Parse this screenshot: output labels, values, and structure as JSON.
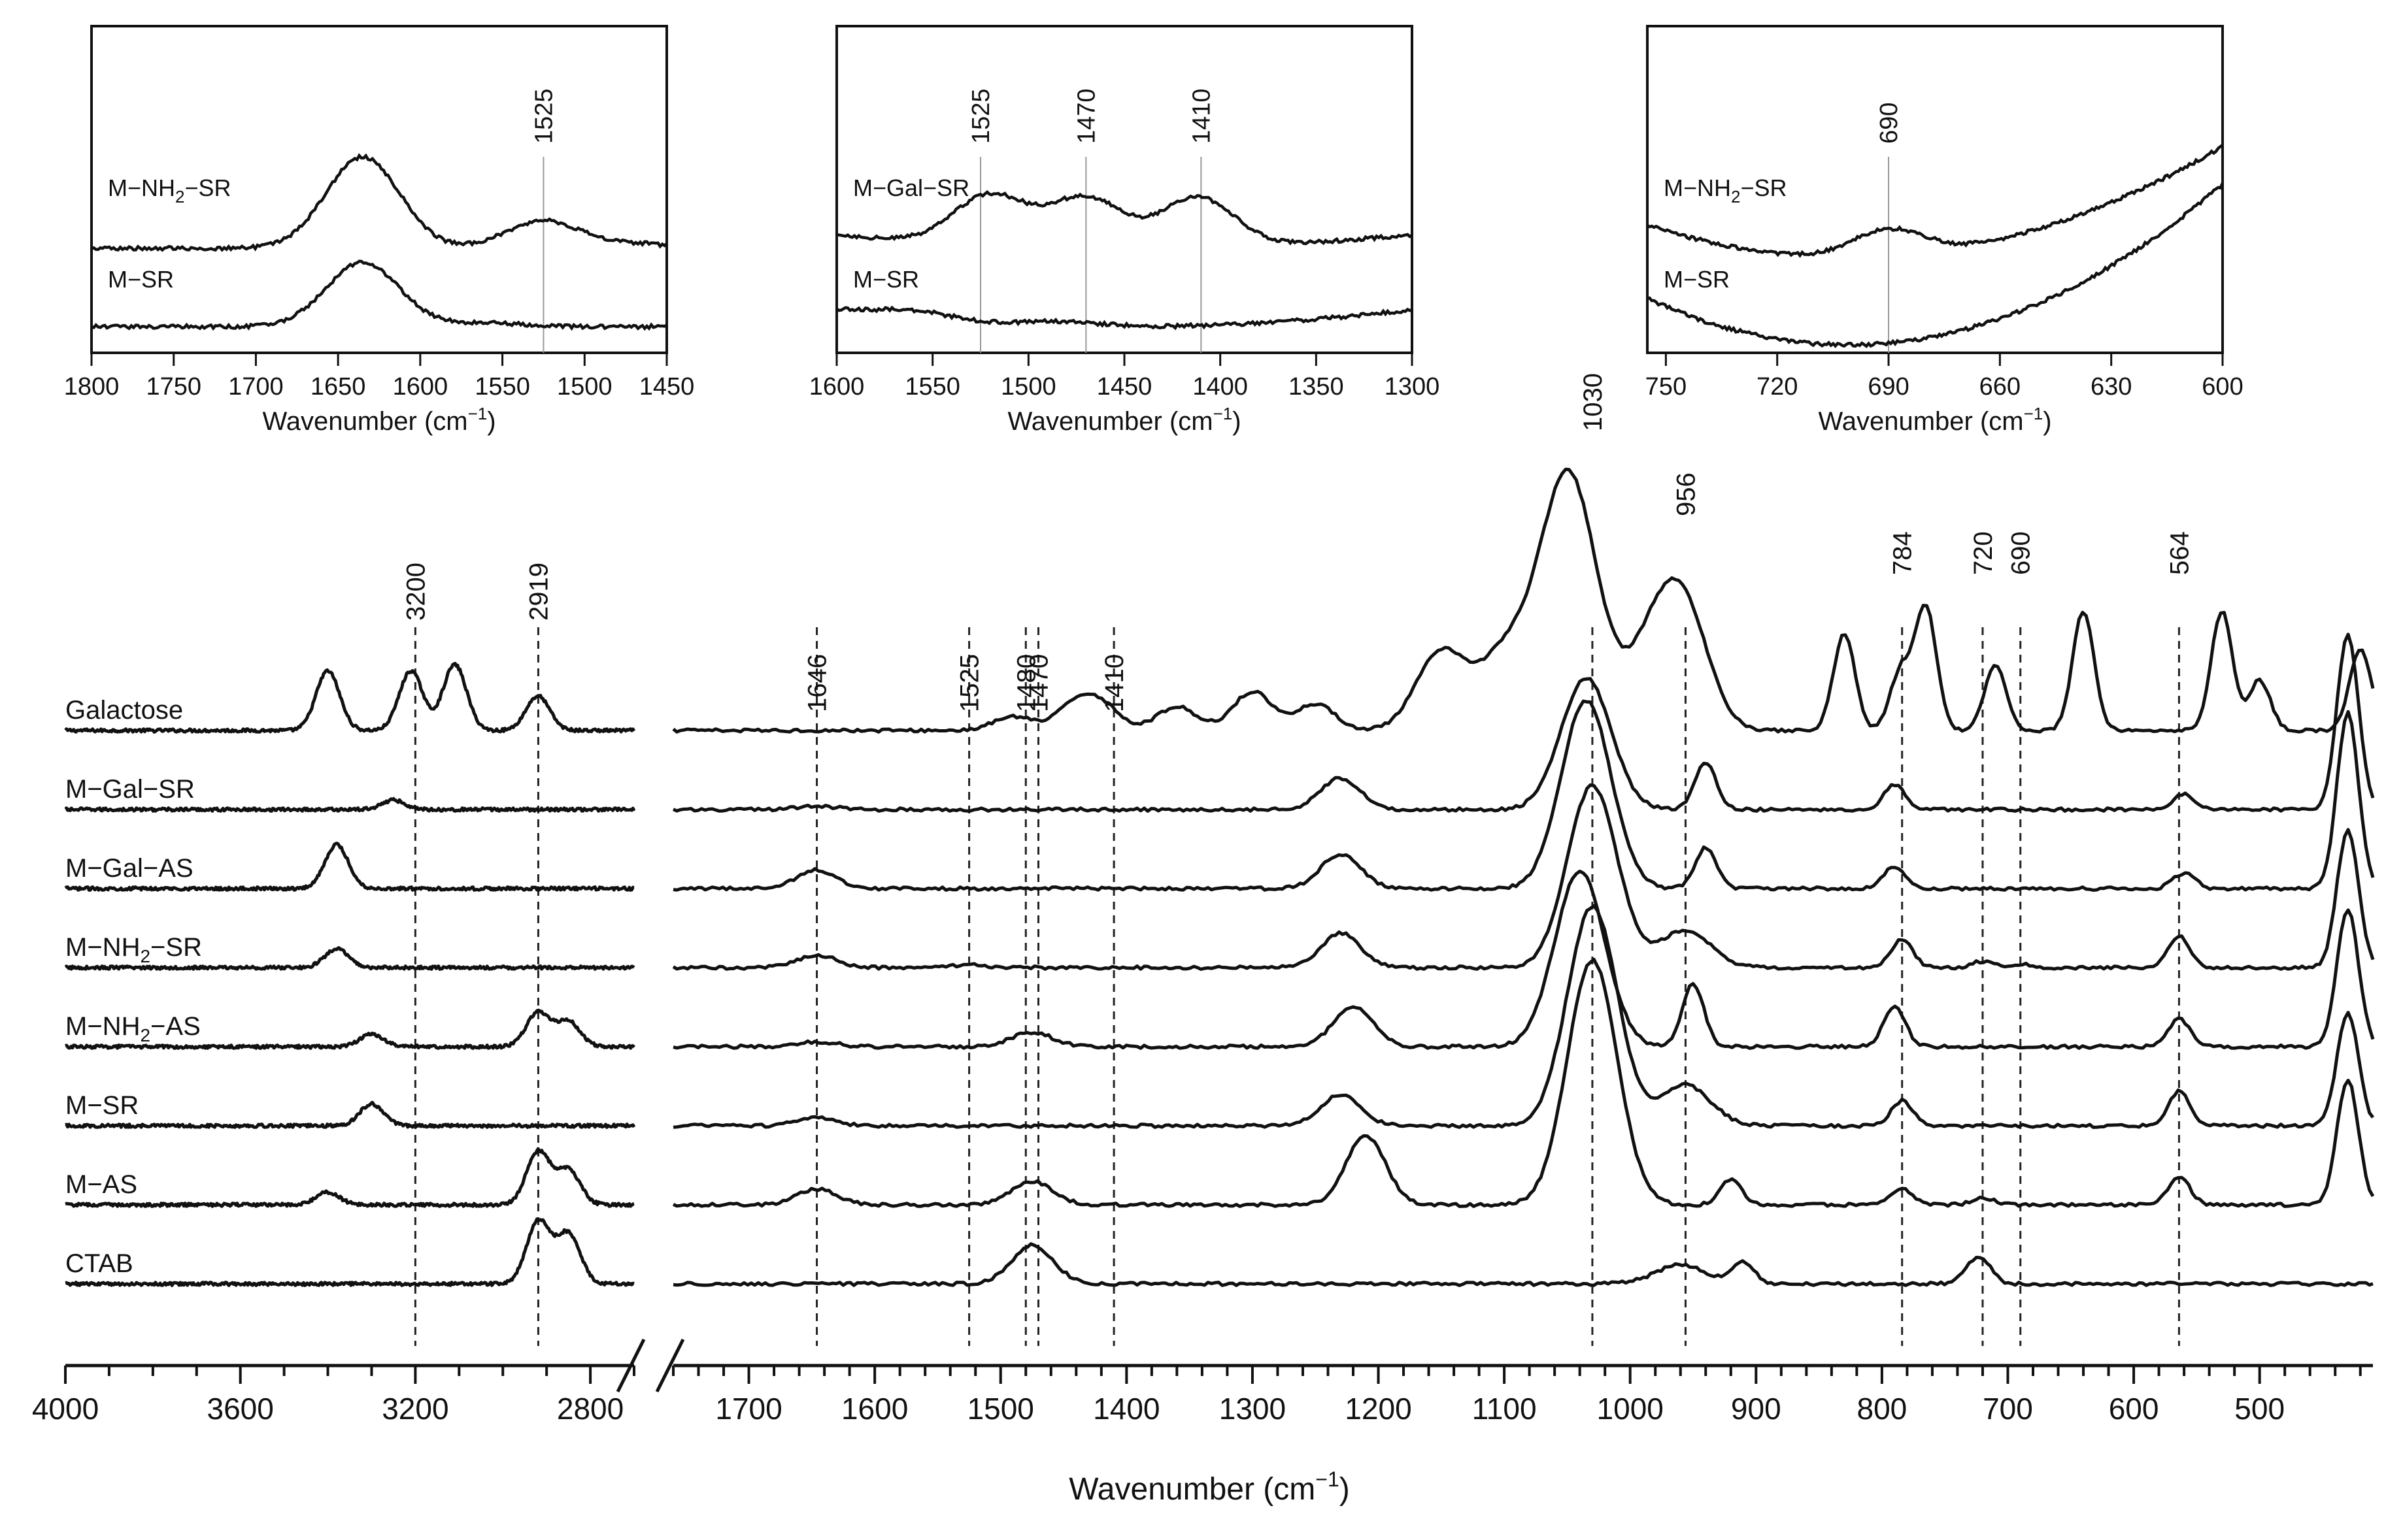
{
  "chart_data": {
    "type": "line",
    "title": "",
    "xlabel": "Wavenumber (cm",
    "xlabel_superscript": "−1",
    "xlabel_suffix": ")",
    "ylabel": "",
    "x_reversed": true,
    "segments": [
      {
        "name": "high",
        "xlim": [
          4000,
          2700
        ],
        "ticks": [
          4000,
          3600,
          3200,
          2800
        ]
      },
      {
        "name": "low",
        "xlim": [
          1760,
          410
        ],
        "ticks": [
          1700,
          1600,
          1500,
          1400,
          1300,
          1200,
          1100,
          1000,
          900,
          800,
          700,
          600,
          500
        ]
      }
    ],
    "series": [
      {
        "name": "Galactose",
        "label": "Galactose",
        "offset": 0,
        "peaks": [
          [
            3400,
            0.95
          ],
          [
            3210,
            0.95
          ],
          [
            3110,
            1.05
          ],
          [
            2920,
            0.55
          ],
          [
            1490,
            0.22
          ],
          [
            1440,
            0.38
          ],
          [
            1420,
            0.35
          ],
          [
            1360,
            0.38
          ],
          [
            1300,
            0.62
          ],
          [
            1250,
            0.42
          ],
          [
            1150,
            1.25
          ],
          [
            1100,
            1.15
          ],
          [
            1060,
            2.2
          ],
          [
            1040,
            2.45
          ],
          [
            990,
            0.6
          ],
          [
            975,
            0.8
          ],
          [
            956,
            1.6
          ],
          [
            830,
            1.55
          ],
          [
            785,
            0.95
          ],
          [
            765,
            1.95
          ],
          [
            710,
            1.05
          ],
          [
            640,
            1.9
          ],
          [
            530,
            1.9
          ],
          [
            500,
            0.8
          ],
          [
            420,
            1.3
          ]
        ]
      },
      {
        "name": "M-Gal-SR",
        "label": "M−Gal−SR",
        "offset": 1,
        "peaks": [
          [
            3250,
            0.15
          ],
          [
            1646,
            0.05
          ],
          [
            1230,
            0.5
          ],
          [
            1035,
            2.1
          ],
          [
            940,
            0.75
          ],
          [
            790,
            0.4
          ],
          [
            560,
            0.25
          ],
          [
            430,
            2.8
          ]
        ]
      },
      {
        "name": "M-Gal-AS",
        "label": "M−Gal−AS",
        "offset": 2,
        "peaks": [
          [
            3380,
            0.7
          ],
          [
            1646,
            0.3
          ],
          [
            1230,
            0.55
          ],
          [
            1035,
            3.0
          ],
          [
            940,
            0.65
          ],
          [
            790,
            0.35
          ],
          [
            560,
            0.25
          ],
          [
            430,
            2.8
          ]
        ]
      },
      {
        "name": "M-NH2-SR",
        "label": "M−NH2−SR",
        "offset": 3,
        "peaks": [
          [
            3380,
            0.3
          ],
          [
            1646,
            0.2
          ],
          [
            1525,
            0.04
          ],
          [
            1230,
            0.55
          ],
          [
            1030,
            2.9
          ],
          [
            956,
            0.6
          ],
          [
            784,
            0.45
          ],
          [
            720,
            0.1
          ],
          [
            690,
            0.05
          ],
          [
            564,
            0.5
          ],
          [
            430,
            2.2
          ]
        ]
      },
      {
        "name": "M-NH2-AS",
        "label": "M−NH2−AS",
        "offset": 4,
        "peaks": [
          [
            3300,
            0.2
          ],
          [
            2919,
            0.55
          ],
          [
            2850,
            0.4
          ],
          [
            1646,
            0.08
          ],
          [
            1480,
            0.12
          ],
          [
            1470,
            0.12
          ],
          [
            1220,
            0.65
          ],
          [
            1040,
            2.8
          ],
          [
            950,
            1.0
          ],
          [
            790,
            0.65
          ],
          [
            564,
            0.45
          ],
          [
            430,
            2.2
          ]
        ]
      },
      {
        "name": "M-SR",
        "label": "M−SR",
        "offset": 5,
        "peaks": [
          [
            3300,
            0.35
          ],
          [
            1646,
            0.12
          ],
          [
            1230,
            0.5
          ],
          [
            1030,
            3.5
          ],
          [
            956,
            0.65
          ],
          [
            784,
            0.4
          ],
          [
            564,
            0.55
          ],
          [
            430,
            1.8
          ]
        ]
      },
      {
        "name": "M-AS",
        "label": "M−AS",
        "offset": 6,
        "peaks": [
          [
            3400,
            0.2
          ],
          [
            2919,
            0.85
          ],
          [
            2850,
            0.55
          ],
          [
            1646,
            0.25
          ],
          [
            1480,
            0.2
          ],
          [
            1470,
            0.2
          ],
          [
            1210,
            1.1
          ],
          [
            1030,
            3.9
          ],
          [
            920,
            0.4
          ],
          [
            784,
            0.25
          ],
          [
            720,
            0.12
          ],
          [
            564,
            0.45
          ],
          [
            430,
            2.0
          ]
        ]
      },
      {
        "name": "CTAB",
        "label": "CTAB",
        "offset": 7,
        "peaks": [
          [
            2919,
            1.0
          ],
          [
            2850,
            0.8
          ],
          [
            1480,
            0.3
          ],
          [
            1470,
            0.35
          ],
          [
            960,
            0.3
          ],
          [
            910,
            0.35
          ],
          [
            730,
            0.2
          ],
          [
            720,
            0.3
          ]
        ]
      }
    ],
    "reference_lines": [
      {
        "wavenumber": 3200,
        "label": "3200"
      },
      {
        "wavenumber": 2919,
        "label": "2919"
      },
      {
        "wavenumber": 1646,
        "label": "1646"
      },
      {
        "wavenumber": 1525,
        "label": "1525"
      },
      {
        "wavenumber": 1480,
        "label": "1480"
      },
      {
        "wavenumber": 1470,
        "label": "1470"
      },
      {
        "wavenumber": 1410,
        "label": "1410"
      },
      {
        "wavenumber": 1030,
        "label": "1030"
      },
      {
        "wavenumber": 956,
        "label": "956"
      },
      {
        "wavenumber": 784,
        "label": "784"
      },
      {
        "wavenumber": 720,
        "label": "720"
      },
      {
        "wavenumber": 690,
        "label": "690"
      },
      {
        "wavenumber": 564,
        "label": "564"
      }
    ],
    "insets": [
      {
        "name": "inset-1",
        "xlim": [
          1800,
          1450
        ],
        "ticks": [
          1800,
          1750,
          1700,
          1650,
          1600,
          1550,
          1500,
          1450
        ],
        "xlabel": "Wavenumber (cm",
        "peak_lines": [
          {
            "wavenumber": 1525,
            "label": "1525"
          }
        ],
        "series": [
          {
            "label": "M−NH2−SR",
            "label_main": "M−NH",
            "label_sub": "2",
            "label_tail": "−SR",
            "peaks": [
              [
                1635,
                1.0
              ],
              [
                1525,
                0.3
              ],
              [
                1470,
                0.05
              ]
            ]
          },
          {
            "label": "M−SR",
            "label_main": "M−SR",
            "label_sub": "",
            "label_tail": "",
            "peaks": [
              [
                1635,
                0.7
              ],
              [
                1560,
                0.04
              ]
            ]
          }
        ]
      },
      {
        "name": "inset-2",
        "xlim": [
          1600,
          1300
        ],
        "ticks": [
          1600,
          1550,
          1500,
          1450,
          1400,
          1350,
          1300
        ],
        "xlabel": "Wavenumber (cm",
        "peak_lines": [
          {
            "wavenumber": 1525,
            "label": "1525"
          },
          {
            "wavenumber": 1470,
            "label": "1470"
          },
          {
            "wavenumber": 1410,
            "label": "1410"
          }
        ],
        "series": [
          {
            "label": "M−Gal−SR",
            "label_main": "M−Gal−SR",
            "label_sub": "",
            "label_tail": "",
            "peaks": [
              [
                1520,
                0.55
              ],
              [
                1470,
                0.55
              ],
              [
                1412,
                0.55
              ]
            ]
          },
          {
            "label": "M−SR",
            "label_main": "M−SR",
            "label_sub": "",
            "label_tail": "",
            "peaks": [
              [
                1560,
                0.08
              ],
              [
                1480,
                0.05
              ]
            ]
          }
        ]
      },
      {
        "name": "inset-3",
        "xlim": [
          755,
          600
        ],
        "ticks": [
          750,
          720,
          690,
          660,
          630,
          600
        ],
        "xlabel": "Wavenumber (cm",
        "peak_lines": [
          {
            "wavenumber": 690,
            "label": "690"
          }
        ],
        "series": [
          {
            "label": "M−NH2−SR",
            "label_main": "M−NH",
            "label_sub": "2",
            "label_tail": "−SR",
            "peaks": [
              [
                690,
                0.3
              ]
            ]
          },
          {
            "label": "M−SR",
            "label_main": "M−SR",
            "label_sub": "",
            "label_tail": "",
            "peaks": []
          }
        ]
      }
    ]
  }
}
